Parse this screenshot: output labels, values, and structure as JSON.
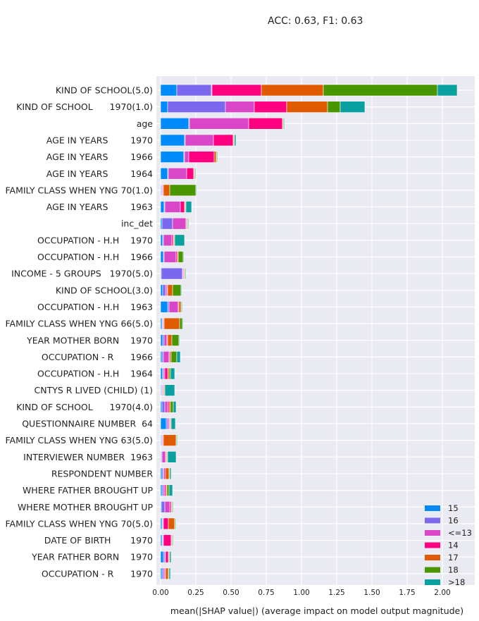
{
  "chart_data": {
    "type": "bar",
    "stacked": true,
    "orientation": "horizontal",
    "title": "ACC: 0.63, F1: 0.63",
    "xlabel": "mean(|SHAP value|) (average impact on model output magnitude)",
    "ylabel": "",
    "xlim": [
      0,
      2.2
    ],
    "xticks": [
      "0.00",
      "0.25",
      "0.50",
      "0.75",
      "1.00",
      "1.25",
      "1.50",
      "1.75",
      "2.00"
    ],
    "grid": true,
    "legend_position": "bottom-right",
    "categories": [
      "KIND OF SCHOOL(5.0)",
      "KIND OF SCHOOL      1970(1.0)",
      "age",
      "AGE IN YEARS        1970",
      "AGE IN YEARS        1966",
      "AGE IN YEARS        1964",
      "FAMILY CLASS WHEN YNG 70(1.0)",
      "AGE IN YEARS        1963",
      "inc_det",
      "OCCUPATION - H.H    1970",
      "OCCUPATION - H.H    1966",
      "INCOME - 5 GROUPS   1970(5.0)",
      "KIND OF SCHOOL(3.0)",
      "OCCUPATION - H.H    1963",
      "FAMILY CLASS WHEN YNG 66(5.0)",
      "YEAR MOTHER BORN    1970",
      "OCCUPATION - R      1966",
      "OCCUPATION - H.H    1964",
      "CNTYS R LIVED (CHILD) (1)",
      "KIND OF SCHOOL      1970(4.0)",
      "QUESTIONNAIRE NUMBER  64",
      "FAMILY CLASS WHEN YNG 63(5.0)",
      "INTERVIEWER NUMBER  1963",
      "RESPONDENT NUMBER",
      "WHERE FATHER BROUGHT UP",
      "WHERE MOTHER BROUGHT UP",
      "FAMILY CLASS WHEN YNG 70(5.0)",
      "DATE OF BIRTH       1970",
      "YEAR FATHER BORN    1970",
      "OCCUPATION - R      1970"
    ],
    "series": [
      {
        "name": "15",
        "color": "#008bfb",
        "values": [
          0.115,
          0.05,
          0.2,
          0.17,
          0.165,
          0.05,
          0.005,
          0.025,
          0.01,
          0.015,
          0.02,
          0.005,
          0.015,
          0.05,
          0.01,
          0.015,
          0.01,
          0.015,
          0.005,
          0.01,
          0.04,
          0.005,
          0.005,
          0.01,
          0.01,
          0.005,
          0.01,
          0.01,
          0.02,
          0.01
        ]
      },
      {
        "name": "16",
        "color": "#7b68ee",
        "values": [
          0.245,
          0.41,
          0.005,
          0.005,
          0.005,
          0.005,
          0.005,
          0.005,
          0.075,
          0.005,
          0.005,
          0.15,
          0.02,
          0.01,
          0.005,
          0.01,
          0.01,
          0.005,
          0.005,
          0.02,
          0.01,
          0.005,
          0.005,
          0.01,
          0.01,
          0.025,
          0.005,
          0.005,
          0.01,
          0.01
        ]
      },
      {
        "name": "<=13",
        "color": "#d946c8",
        "values": [
          0.005,
          0.205,
          0.42,
          0.2,
          0.03,
          0.13,
          0.005,
          0.11,
          0.095,
          0.06,
          0.085,
          0.005,
          0.01,
          0.065,
          0.005,
          0.02,
          0.04,
          0.01,
          0.005,
          0.02,
          0.01,
          0.005,
          0.025,
          0.005,
          0.01,
          0.035,
          0.005,
          0.005,
          0.005,
          0.01
        ]
      },
      {
        "name": "14",
        "color": "#ff0080",
        "values": [
          0.35,
          0.23,
          0.24,
          0.14,
          0.18,
          0.05,
          0.005,
          0.03,
          0.005,
          0.01,
          0.01,
          0.005,
          0.005,
          0.005,
          0.005,
          0.005,
          0.005,
          0.02,
          0.005,
          0.01,
          0.005,
          0.005,
          0.005,
          0.01,
          0.01,
          0.01,
          0.035,
          0.055,
          0.02,
          0.005
        ]
      },
      {
        "name": "17",
        "color": "#e05a00",
        "values": [
          0.44,
          0.29,
          0.005,
          0.005,
          0.015,
          0.005,
          0.045,
          0.005,
          0.005,
          0.005,
          0.005,
          0.005,
          0.035,
          0.015,
          0.11,
          0.03,
          0.01,
          0.01,
          0.005,
          0.01,
          0.005,
          0.09,
          0.005,
          0.025,
          0.005,
          0.005,
          0.045,
          0.005,
          0.005,
          0.02
        ]
      },
      {
        "name": "18",
        "color": "#4a9600",
        "values": [
          0.81,
          0.09,
          0.005,
          0.005,
          0.005,
          0.005,
          0.185,
          0.005,
          0.005,
          0.005,
          0.035,
          0.005,
          0.06,
          0.005,
          0.02,
          0.05,
          0.04,
          0.01,
          0.005,
          0.02,
          0.005,
          0.005,
          0.005,
          0.005,
          0.015,
          0.005,
          0.005,
          0.005,
          0.005,
          0.005
        ]
      },
      {
        "name": ">18",
        "color": "#0aa0a0",
        "values": [
          0.14,
          0.175,
          0.005,
          0.01,
          0.005,
          0.005,
          0.005,
          0.04,
          0.005,
          0.07,
          0.005,
          0.005,
          0.005,
          0.005,
          0.005,
          0.005,
          0.025,
          0.03,
          0.07,
          0.02,
          0.03,
          0.005,
          0.06,
          0.01,
          0.025,
          0.005,
          0.005,
          0.005,
          0.01,
          0.01
        ]
      }
    ]
  }
}
